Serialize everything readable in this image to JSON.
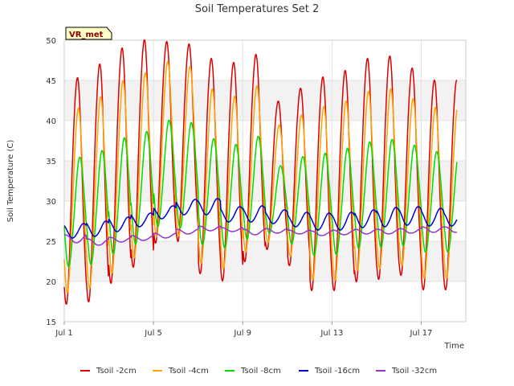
{
  "chart_data": {
    "type": "line",
    "title": "Soil Temperatures Set 2",
    "xlabel": "Time",
    "ylabel": "Soil Temperature (C)",
    "badge": "VR_met",
    "x_range_days": [
      1,
      19
    ],
    "xlim": [
      "Jul 1",
      "Jul 19"
    ],
    "ylim": [
      15,
      50
    ],
    "y_ticks": [
      15,
      20,
      25,
      30,
      35,
      40,
      45,
      50
    ],
    "x_ticks": [
      {
        "label": "Jul 1",
        "day": 1
      },
      {
        "label": "Jul 5",
        "day": 5
      },
      {
        "label": "Jul 9",
        "day": 9
      },
      {
        "label": "Jul 13",
        "day": 13
      },
      {
        "label": "Jul 17",
        "day": 17
      }
    ],
    "grid": true,
    "band_colors": [
      "#ffffff",
      "#f2f2f2"
    ],
    "legend_position": "bottom",
    "days": [
      1,
      2,
      3,
      4,
      5,
      6,
      7,
      8,
      9,
      10,
      11,
      12,
      13,
      14,
      15,
      16,
      17,
      18
    ],
    "series": [
      {
        "name": "Tsoil -2cm",
        "color": "#dd0000",
        "peak_offset": 0.58,
        "daily_max": [
          45.3,
          47.0,
          49.0,
          50.0,
          49.8,
          49.5,
          47.7,
          47.2,
          48.2,
          42.4,
          44.0,
          45.4,
          46.2,
          47.7,
          48.0,
          46.5,
          45.0,
          45.0
        ],
        "daily_min": [
          17.2,
          17.5,
          19.8,
          21.8,
          24.8,
          25.0,
          21.0,
          20.1,
          22.5,
          24.0,
          22.0,
          18.9,
          18.9,
          20.0,
          20.3,
          20.8,
          19.0,
          19.0
        ]
      },
      {
        "name": "Tsoil -4cm",
        "color": "#ffa500",
        "peak_offset": 0.63,
        "daily_max": [
          41.3,
          42.7,
          44.7,
          45.7,
          47.1,
          46.5,
          43.7,
          42.8,
          44.1,
          39.3,
          40.5,
          41.5,
          42.2,
          43.4,
          43.7,
          42.5,
          41.4,
          41.4
        ],
        "daily_min": [
          18.9,
          19.4,
          21.3,
          23.2,
          25.8,
          25.9,
          22.5,
          21.8,
          23.9,
          25.0,
          23.3,
          20.4,
          20.4,
          21.6,
          21.8,
          22.2,
          20.6,
          20.6
        ]
      },
      {
        "name": "Tsoil -8cm",
        "color": "#00dd00",
        "peak_offset": 0.7,
        "daily_max": [
          35.3,
          36.1,
          37.7,
          38.5,
          39.9,
          39.6,
          37.6,
          36.9,
          37.9,
          34.3,
          35.4,
          35.8,
          36.4,
          37.2,
          37.5,
          36.8,
          36.0,
          36.0
        ],
        "daily_min": [
          22.0,
          22.3,
          23.6,
          24.8,
          27.0,
          26.8,
          24.7,
          24.3,
          25.4,
          26.1,
          24.8,
          23.4,
          23.5,
          24.3,
          24.4,
          24.6,
          23.8,
          23.8
        ]
      },
      {
        "name": "Tsoil -16cm",
        "color": "#0000cc",
        "peak_offset": 0.88,
        "daily_max": [
          27.2,
          27.5,
          28.0,
          28.5,
          29.4,
          30.2,
          30.3,
          29.3,
          29.4,
          28.9,
          28.6,
          28.5,
          28.6,
          28.9,
          29.2,
          29.3,
          29.1,
          28.9
        ],
        "daily_min": [
          25.4,
          25.6,
          26.2,
          26.8,
          27.8,
          28.3,
          28.3,
          27.4,
          27.4,
          27.2,
          26.8,
          26.4,
          26.4,
          26.7,
          26.8,
          27.0,
          26.9,
          26.9
        ]
      },
      {
        "name": "Tsoil -32cm",
        "color": "#9933cc",
        "peak_offset": 0.05,
        "daily_max": [
          25.8,
          25.3,
          25.5,
          25.7,
          26.0,
          26.5,
          26.9,
          26.7,
          26.5,
          26.6,
          26.4,
          26.3,
          26.4,
          26.5,
          26.5,
          26.6,
          26.8,
          26.8
        ],
        "daily_min": [
          24.8,
          24.5,
          24.9,
          25.1,
          25.4,
          25.9,
          26.3,
          26.2,
          25.8,
          26.0,
          25.9,
          25.7,
          25.8,
          25.9,
          25.9,
          26.0,
          26.1,
          26.1
        ]
      }
    ]
  }
}
